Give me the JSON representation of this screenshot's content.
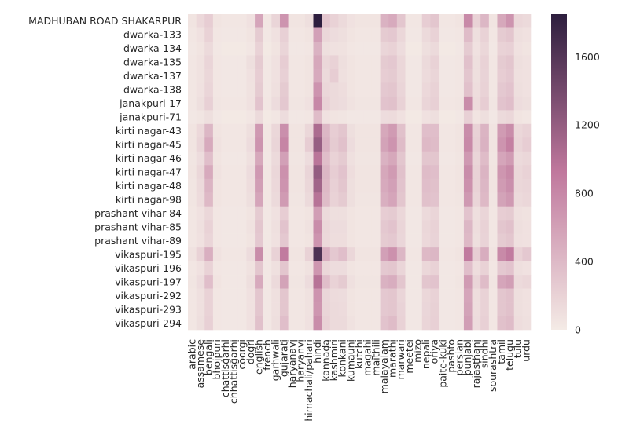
{
  "chart_data": {
    "type": "heatmap",
    "title": "",
    "xlabel": "",
    "ylabel": "",
    "rows": [
      "MADHUBAN ROAD SHAKARPUR",
      "dwarka-133",
      "dwarka-134",
      "dwarka-135",
      "dwarka-137",
      "dwarka-138",
      "janakpuri-17",
      "janakpuri-71",
      "kirti nagar-43",
      "kirti nagar-45",
      "kirti nagar-46",
      "kirti nagar-47",
      "kirti nagar-48",
      "kirti nagar-98",
      "prashant vihar-84",
      "prashant vihar-85",
      "prashant vihar-89",
      "vikaspuri-195",
      "vikaspuri-196",
      "vikaspuri-197",
      "vikaspuri-292",
      "vikaspuri-293",
      "vikaspuri-294"
    ],
    "columns": [
      "arabic",
      "assamese",
      "bengali",
      "bhojpuri",
      "chattisgarhi",
      "chhattisgarhi",
      "coorgi",
      "dogri",
      "english",
      "french",
      "garhwali",
      "gujarati",
      "haryanavi",
      "haryanvi",
      "himachali/pahari",
      "hindi",
      "kannada",
      "kashmiri",
      "konkani",
      "kumauni",
      "kutchi",
      "magahi",
      "maithili",
      "malayalam",
      "marathi",
      "marwari",
      "meetei",
      "mizo",
      "nepali",
      "oriya",
      "paite-kuki",
      "pashto",
      "persian",
      "punjabi",
      "rajasthani",
      "sindhi",
      "sourashtra",
      "tamil",
      "telugu",
      "tulu",
      "urdu"
    ],
    "values": [
      [
        60,
        150,
        240,
        60,
        40,
        40,
        40,
        80,
        560,
        40,
        180,
        700,
        60,
        60,
        100,
        1850,
        300,
        200,
        140,
        80,
        60,
        60,
        60,
        460,
        520,
        300,
        40,
        40,
        240,
        300,
        40,
        40,
        60,
        780,
        200,
        420,
        60,
        540,
        700,
        160,
        140
      ],
      [
        40,
        80,
        200,
        40,
        30,
        30,
        30,
        60,
        260,
        30,
        80,
        220,
        40,
        40,
        60,
        600,
        160,
        120,
        100,
        60,
        40,
        40,
        40,
        260,
        280,
        160,
        30,
        30,
        140,
        200,
        30,
        30,
        40,
        380,
        100,
        200,
        40,
        260,
        300,
        100,
        80
      ],
      [
        30,
        60,
        140,
        30,
        20,
        20,
        20,
        40,
        200,
        20,
        60,
        180,
        30,
        30,
        40,
        460,
        100,
        80,
        70,
        40,
        30,
        30,
        30,
        180,
        200,
        120,
        20,
        20,
        100,
        140,
        20,
        20,
        30,
        260,
        80,
        160,
        30,
        200,
        220,
        80,
        60
      ],
      [
        40,
        70,
        180,
        40,
        30,
        30,
        30,
        100,
        260,
        30,
        80,
        240,
        40,
        40,
        60,
        540,
        160,
        200,
        100,
        60,
        40,
        40,
        40,
        260,
        280,
        160,
        30,
        30,
        140,
        200,
        30,
        30,
        40,
        340,
        100,
        200,
        40,
        260,
        300,
        100,
        80
      ],
      [
        40,
        70,
        160,
        40,
        30,
        30,
        30,
        80,
        240,
        30,
        80,
        220,
        40,
        40,
        60,
        520,
        140,
        240,
        90,
        60,
        40,
        40,
        40,
        240,
        260,
        160,
        30,
        30,
        130,
        180,
        30,
        30,
        40,
        300,
        100,
        190,
        40,
        240,
        280,
        90,
        80
      ],
      [
        40,
        80,
        180,
        40,
        30,
        30,
        30,
        70,
        260,
        30,
        90,
        260,
        40,
        40,
        60,
        700,
        160,
        140,
        110,
        60,
        40,
        40,
        40,
        280,
        300,
        180,
        30,
        30,
        150,
        200,
        30,
        30,
        40,
        340,
        110,
        200,
        40,
        280,
        320,
        100,
        80
      ],
      [
        40,
        100,
        220,
        50,
        40,
        40,
        40,
        80,
        320,
        40,
        120,
        280,
        50,
        50,
        80,
        800,
        200,
        140,
        120,
        70,
        50,
        50,
        50,
        320,
        340,
        200,
        40,
        40,
        180,
        220,
        40,
        40,
        50,
        760,
        130,
        240,
        50,
        320,
        360,
        120,
        100
      ],
      [
        30,
        50,
        100,
        30,
        20,
        20,
        20,
        40,
        140,
        20,
        40,
        120,
        30,
        30,
        40,
        380,
        80,
        60,
        50,
        30,
        30,
        30,
        30,
        120,
        130,
        80,
        20,
        20,
        80,
        100,
        20,
        20,
        30,
        220,
        60,
        100,
        30,
        140,
        160,
        60,
        40
      ],
      [
        60,
        150,
        420,
        60,
        40,
        40,
        40,
        100,
        660,
        40,
        160,
        740,
        60,
        60,
        160,
        1050,
        420,
        240,
        300,
        100,
        60,
        60,
        60,
        540,
        640,
        340,
        40,
        40,
        360,
        360,
        40,
        40,
        60,
        760,
        200,
        440,
        60,
        640,
        760,
        160,
        200
      ],
      [
        60,
        180,
        520,
        70,
        40,
        40,
        40,
        120,
        700,
        40,
        180,
        820,
        60,
        60,
        240,
        1180,
        460,
        260,
        340,
        120,
        60,
        60,
        60,
        580,
        700,
        380,
        40,
        40,
        400,
        380,
        40,
        40,
        60,
        780,
        220,
        460,
        60,
        700,
        860,
        180,
        240
      ],
      [
        50,
        120,
        360,
        60,
        30,
        30,
        30,
        90,
        540,
        30,
        140,
        600,
        50,
        50,
        120,
        960,
        360,
        200,
        260,
        90,
        50,
        50,
        50,
        460,
        540,
        300,
        30,
        30,
        300,
        300,
        30,
        30,
        50,
        660,
        180,
        380,
        50,
        560,
        640,
        140,
        160
      ],
      [
        60,
        160,
        520,
        70,
        40,
        40,
        40,
        120,
        660,
        40,
        160,
        720,
        60,
        60,
        180,
        1200,
        420,
        240,
        320,
        110,
        60,
        60,
        60,
        540,
        640,
        340,
        40,
        40,
        380,
        360,
        40,
        40,
        60,
        760,
        200,
        440,
        60,
        680,
        780,
        160,
        200
      ],
      [
        50,
        140,
        440,
        60,
        40,
        40,
        40,
        110,
        620,
        40,
        150,
        700,
        60,
        60,
        160,
        1120,
        400,
        220,
        300,
        100,
        60,
        60,
        60,
        520,
        600,
        320,
        40,
        40,
        360,
        340,
        40,
        40,
        60,
        720,
        200,
        420,
        60,
        640,
        740,
        160,
        180
      ],
      [
        50,
        130,
        400,
        60,
        40,
        40,
        40,
        100,
        560,
        40,
        140,
        640,
        50,
        50,
        140,
        980,
        380,
        200,
        260,
        100,
        50,
        50,
        50,
        480,
        560,
        300,
        40,
        40,
        340,
        320,
        40,
        40,
        50,
        660,
        180,
        400,
        50,
        580,
        660,
        140,
        160
      ],
      [
        40,
        80,
        160,
        40,
        30,
        30,
        30,
        60,
        260,
        30,
        80,
        240,
        40,
        40,
        60,
        620,
        140,
        100,
        100,
        60,
        40,
        40,
        40,
        240,
        260,
        160,
        30,
        30,
        140,
        180,
        30,
        30,
        40,
        320,
        100,
        180,
        40,
        240,
        260,
        90,
        70
      ],
      [
        40,
        90,
        200,
        40,
        30,
        30,
        30,
        70,
        300,
        30,
        90,
        320,
        40,
        40,
        70,
        760,
        160,
        120,
        120,
        60,
        40,
        40,
        40,
        280,
        320,
        180,
        30,
        30,
        160,
        200,
        30,
        30,
        40,
        420,
        110,
        200,
        40,
        300,
        340,
        100,
        80
      ],
      [
        40,
        80,
        180,
        40,
        30,
        30,
        30,
        60,
        280,
        30,
        80,
        280,
        40,
        40,
        60,
        700,
        150,
        110,
        110,
        60,
        40,
        40,
        40,
        260,
        280,
        170,
        30,
        30,
        150,
        190,
        30,
        30,
        40,
        400,
        100,
        190,
        40,
        260,
        300,
        90,
        80
      ],
      [
        70,
        200,
        480,
        70,
        40,
        40,
        40,
        120,
        760,
        40,
        200,
        900,
        60,
        60,
        200,
        1650,
        480,
        280,
        360,
        160,
        60,
        60,
        60,
        600,
        720,
        420,
        40,
        40,
        400,
        420,
        40,
        40,
        60,
        900,
        240,
        500,
        60,
        780,
        900,
        200,
        280
      ],
      [
        40,
        80,
        200,
        40,
        30,
        30,
        30,
        70,
        300,
        30,
        90,
        300,
        40,
        40,
        70,
        680,
        160,
        120,
        120,
        60,
        40,
        40,
        40,
        280,
        300,
        180,
        30,
        30,
        160,
        200,
        30,
        30,
        40,
        360,
        110,
        200,
        40,
        280,
        320,
        100,
        80
      ],
      [
        50,
        120,
        360,
        60,
        30,
        30,
        30,
        100,
        520,
        30,
        140,
        580,
        50,
        50,
        120,
        980,
        360,
        200,
        260,
        90,
        50,
        50,
        50,
        460,
        500,
        300,
        30,
        30,
        300,
        320,
        30,
        30,
        50,
        640,
        180,
        380,
        50,
        560,
        620,
        140,
        160
      ],
      [
        40,
        90,
        200,
        40,
        30,
        30,
        30,
        80,
        300,
        30,
        90,
        300,
        40,
        40,
        70,
        700,
        170,
        130,
        120,
        60,
        40,
        40,
        40,
        280,
        300,
        180,
        30,
        30,
        160,
        200,
        30,
        30,
        40,
        560,
        110,
        200,
        40,
        300,
        340,
        100,
        80
      ],
      [
        40,
        90,
        200,
        40,
        30,
        30,
        30,
        80,
        300,
        30,
        90,
        300,
        40,
        40,
        70,
        680,
        180,
        140,
        130,
        60,
        40,
        40,
        40,
        280,
        300,
        190,
        30,
        30,
        170,
        210,
        30,
        30,
        40,
        580,
        110,
        200,
        40,
        300,
        340,
        100,
        80
      ],
      [
        40,
        100,
        220,
        40,
        30,
        30,
        30,
        80,
        340,
        30,
        100,
        360,
        40,
        40,
        80,
        760,
        200,
        140,
        140,
        70,
        40,
        40,
        40,
        320,
        380,
        200,
        30,
        30,
        180,
        220,
        30,
        30,
        40,
        620,
        120,
        220,
        40,
        340,
        380,
        110,
        90
      ]
    ],
    "colorbar": {
      "ticks": [
        "0",
        "400",
        "800",
        "1200",
        "1600"
      ],
      "min": 0,
      "max": 1850
    },
    "colors": {
      "low": "#f4ebe6",
      "mid": "#c0789d",
      "high": "#2d1e3e"
    }
  }
}
